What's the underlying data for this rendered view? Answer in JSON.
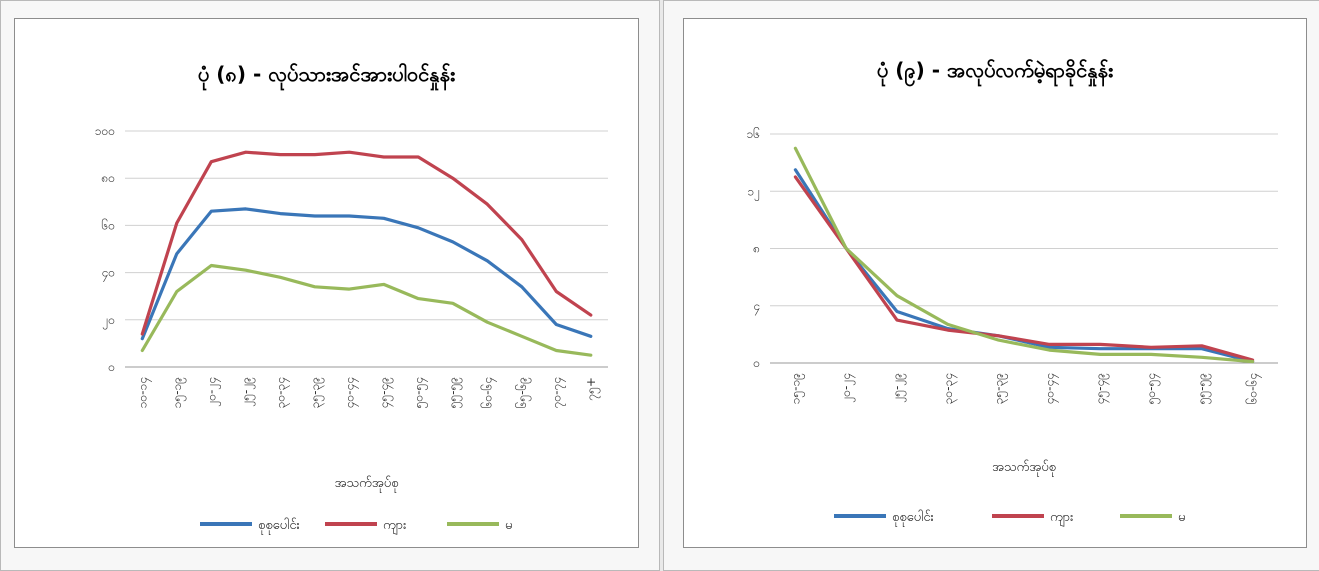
{
  "colors": {
    "total": "#3a76b8",
    "male": "#c0434f",
    "female": "#98b95b",
    "grid": "#d0d0d0"
  },
  "chart_data": [
    {
      "type": "line",
      "title": "ပုံ (၈) - လုပ်သားအင်အားပါဝင်နှုန်း",
      "xlabel": "အသက်အုပ်စု",
      "ylabel": "",
      "ylim": [
        0,
        100
      ],
      "yticks": [
        "၀",
        "၂၀",
        "၄၀",
        "၆၀",
        "၈၀",
        "၁၀၀"
      ],
      "categories": [
        "၁၀-၁၄",
        "၁၅-၁၉",
        "၂၀-၂၄",
        "၂၅-၂၉",
        "၃၀-၃၄",
        "၃၅-၃၉",
        "၄၀-၄၄",
        "၄၅-၄၉",
        "၅၀-၅၄",
        "၅၅-၅၉",
        "၆၀-၆၄",
        "၆၅-၆၉",
        "၇၀-၇၄",
        "၇၅+"
      ],
      "grid": true,
      "legend": "bottom",
      "series": [
        {
          "name": "စုစုပေါင်း",
          "values": [
            12,
            48,
            66,
            67,
            65,
            64,
            64,
            63,
            59,
            53,
            45,
            34,
            18,
            13
          ]
        },
        {
          "name": "ကျား",
          "values": [
            14,
            61,
            87,
            91,
            90,
            90,
            91,
            89,
            89,
            80,
            69,
            54,
            32,
            22
          ]
        },
        {
          "name": "မ",
          "values": [
            7,
            32,
            43,
            41,
            38,
            34,
            33,
            35,
            29,
            27,
            19,
            13,
            7,
            5
          ]
        }
      ]
    },
    {
      "type": "line",
      "title": "ပုံ (၉) - အလုပ်လက်မဲ့ရာခိုင်နှုန်း",
      "xlabel": "အသက်အုပ်စု",
      "ylabel": "",
      "ylim": [
        0,
        16
      ],
      "yticks": [
        "၀",
        "၄",
        "၈",
        "၁၂",
        "၁၆"
      ],
      "categories": [
        "၁၅-၁၉",
        "၂၀-၂၄",
        "၂၅-၂၉",
        "၃၀-၃၄",
        "၃၅-၃၉",
        "၄၀-၄၄",
        "၄၅-၄၉",
        "၅၀-၅၄",
        "၅၅-၅၉",
        "၆၀-၆၄"
      ],
      "grid": true,
      "legend": "bottom",
      "series": [
        {
          "name": "စုစုပေါင်း",
          "values": [
            13.5,
            8.0,
            3.6,
            2.4,
            1.9,
            1.1,
            1.0,
            1.0,
            1.0,
            0.1
          ]
        },
        {
          "name": "ကျား",
          "values": [
            13.0,
            8.0,
            3.0,
            2.3,
            1.9,
            1.3,
            1.3,
            1.1,
            1.2,
            0.2
          ]
        },
        {
          "name": "မ",
          "values": [
            15.0,
            8.0,
            4.7,
            2.7,
            1.6,
            0.9,
            0.6,
            0.6,
            0.4,
            0.1
          ]
        }
      ]
    }
  ]
}
